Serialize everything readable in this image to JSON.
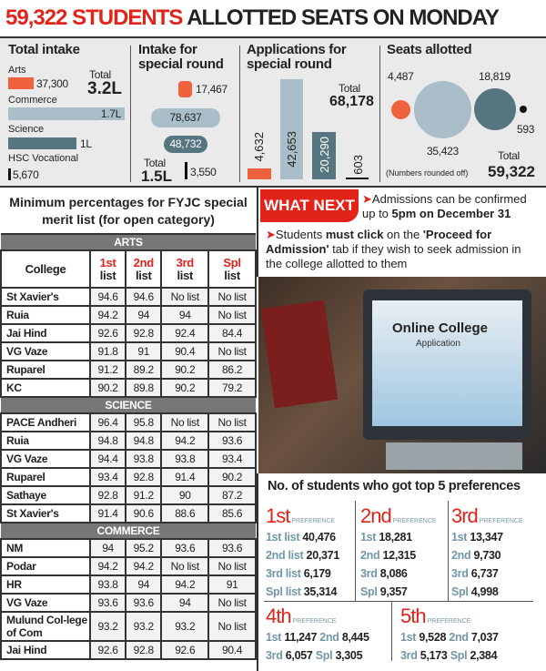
{
  "headline": {
    "highlight": "59,322 STUDENTS",
    "rest": " ALLOTTED SEATS ON MONDAY"
  },
  "colors": {
    "accent": "#e2231a",
    "arts": "#f0623e",
    "commerce": "#a9bec8",
    "science": "#557680",
    "vocational": "#111111"
  },
  "total_intake": {
    "title": "Total intake",
    "total_label": "Total",
    "total_value": "3.2L",
    "items": [
      {
        "label": "Arts",
        "value": "37,300"
      },
      {
        "label": "Commerce",
        "value": "1.7L"
      },
      {
        "label": "Science",
        "value": "1L"
      },
      {
        "label": "HSC Vocational",
        "value": "5,670"
      }
    ]
  },
  "special_intake": {
    "title": "Intake for special round",
    "values": [
      "17,467",
      "78,637",
      "48,732",
      "3,550"
    ],
    "total_label": "Total",
    "total_value": "1.5L"
  },
  "applications": {
    "title": "Applications for special round",
    "values": [
      "4,632",
      "42,653",
      "20,290",
      "603"
    ],
    "total_label": "Total",
    "total_value": "68,178"
  },
  "seats": {
    "title": "Seats allotted",
    "values": [
      "4,487",
      "35,423",
      "18,819",
      "593"
    ],
    "note": "(Numbers rounded off)",
    "total_label": "Total",
    "total_value": "59,322"
  },
  "table": {
    "title": "Minimum percentages for FYJC special merit list (for open category)",
    "headers": {
      "college": "College",
      "c1a": "1st",
      "c1b": "list",
      "c2a": "2nd",
      "c2b": "list",
      "c3a": "3rd",
      "c3b": "list",
      "c4a": "Spl",
      "c4b": "list"
    },
    "sections": [
      {
        "name": "ARTS",
        "rows": [
          [
            "St Xavier's",
            "94.6",
            "94.6",
            "No list",
            "No list"
          ],
          [
            "Ruia",
            "94.2",
            "94",
            "94",
            "No list"
          ],
          [
            "Jai Hind",
            "92.6",
            "92.8",
            "92.4",
            "84.4"
          ],
          [
            "VG Vaze",
            "91.8",
            "91",
            "90.4",
            "No list"
          ],
          [
            "Ruparel",
            "91.2",
            "89.2",
            "90.2",
            "86.2"
          ],
          [
            "KC",
            "90.2",
            "89.8",
            "90.2",
            "79.2"
          ]
        ]
      },
      {
        "name": "SCIENCE",
        "rows": [
          [
            "PACE Andheri",
            "96.4",
            "95.8",
            "No list",
            "No list"
          ],
          [
            "Ruia",
            "94.8",
            "94.8",
            "94.2",
            "93.6"
          ],
          [
            "VG Vaze",
            "94.4",
            "93.8",
            "93.8",
            "93.4"
          ],
          [
            "Ruparel",
            "93.4",
            "92.8",
            "91.4",
            "90.2"
          ],
          [
            "Sathaye",
            "92.8",
            "91.2",
            "90",
            "87.2"
          ],
          [
            "St Xavier's",
            "91.4",
            "90.6",
            "88.6",
            "85.6"
          ]
        ]
      },
      {
        "name": "COMMERCE",
        "rows": [
          [
            "NM",
            "94",
            "95.2",
            "93.6",
            "93.6"
          ],
          [
            "Podar",
            "94.2",
            "94.2",
            "No list",
            "No list"
          ],
          [
            "HR",
            "93.8",
            "94",
            "94.2",
            "91"
          ],
          [
            "VG Vaze",
            "93.6",
            "93.6",
            "94",
            "No list"
          ],
          [
            "Mulund Col-lege of Com",
            "93.2",
            "93.2",
            "93.2",
            "No list"
          ],
          [
            "Jai Hind",
            "92.6",
            "92.8",
            "92.6",
            "90.4"
          ]
        ]
      }
    ]
  },
  "what_next": {
    "badge": "WHAT NEXT",
    "p1a": "Admissions can be confirmed up to ",
    "p1b": "5pm on December 31",
    "p2a": "Students ",
    "p2b": "must click",
    "p2c": " on the ",
    "p2d": "'Proceed for Admission'",
    "p2e": " tab if they wish to seek admission in the college allotted to them"
  },
  "photo": {
    "screen_title": "Online College",
    "screen_sub": "Application"
  },
  "prefs": {
    "title": "No. of students who got top 5 preferences",
    "pref_label": "PREFERENCE",
    "groups": [
      {
        "n": "1st",
        "items": [
          [
            "1st list",
            "40,476"
          ],
          [
            "2nd list",
            "20,371"
          ],
          [
            "3rd list",
            "6,179"
          ],
          [
            "Spl list",
            "35,314"
          ]
        ]
      },
      {
        "n": "2nd",
        "items": [
          [
            "1st",
            "18,281"
          ],
          [
            "2nd",
            "12,315"
          ],
          [
            "3rd",
            "8,086"
          ],
          [
            "Spl",
            "9,357"
          ]
        ]
      },
      {
        "n": "3rd",
        "items": [
          [
            "1st",
            "13,347"
          ],
          [
            "2nd",
            "9,730"
          ],
          [
            "3rd",
            "6,737"
          ],
          [
            "Spl",
            "4,998"
          ]
        ]
      },
      {
        "n": "4th",
        "items": [
          [
            "1st",
            "11,247"
          ],
          [
            "2nd",
            "8,445"
          ],
          [
            "3rd",
            "6,057"
          ],
          [
            "Spl",
            "3,305"
          ]
        ]
      },
      {
        "n": "5th",
        "items": [
          [
            "1st",
            "9,528"
          ],
          [
            "2nd",
            "7,037"
          ],
          [
            "3rd",
            "5,173"
          ],
          [
            "Spl",
            "2,384"
          ]
        ]
      }
    ]
  }
}
